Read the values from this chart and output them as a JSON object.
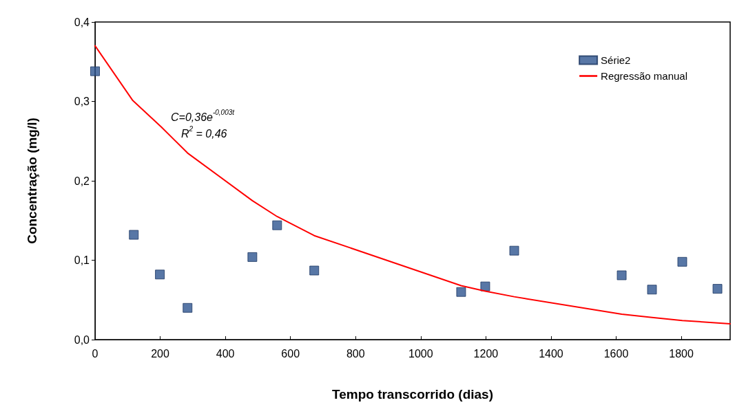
{
  "chart_data": {
    "type": "scatter",
    "xlabel": "Tempo transcorrido (dias)",
    "ylabel": "Concentração (mg/l)",
    "annotations": [
      "C=0,36e$^{-0,003t}$",
      "R$^{2}$ = 0,46"
    ],
    "series": [
      {
        "name": "Série2",
        "marker": "square",
        "color": "#2e5590",
        "x": [
          0,
          119,
          199,
          284,
          483,
          559,
          673,
          1124,
          1198,
          1287,
          1617,
          1710,
          1803,
          1911
        ],
        "values": [
          0.338,
          0.132,
          0.082,
          0.04,
          0.104,
          0.144,
          0.087,
          0.06,
          0.067,
          0.112,
          0.081,
          0.063,
          0.098,
          0.064
        ]
      },
      {
        "name": "Regressão manual",
        "type": "line",
        "marker": "none",
        "line_style": "solid",
        "color": "#ff0000",
        "x": [
          0,
          116,
          203,
          284,
          483,
          559,
          673,
          1124,
          1198,
          1287,
          1617,
          1710,
          1803,
          1950
        ],
        "values": [
          0.37,
          0.301,
          0.268,
          0.235,
          0.175,
          0.155,
          0.131,
          0.068,
          0.061,
          0.054,
          0.032,
          0.028,
          0.024,
          0.02
        ]
      }
    ],
    "xlim": [
      0,
      1950
    ],
    "xticks": [
      0,
      200,
      400,
      600,
      800,
      1000,
      1200,
      1400,
      1600,
      1800
    ],
    "ylim": [
      0,
      0.4
    ],
    "yticks": [
      {
        "value": 0,
        "label": "0,0"
      },
      {
        "value": 0.1,
        "label": "0,1"
      },
      {
        "value": 0.2,
        "label": "0,2"
      },
      {
        "value": 0.3,
        "label": "0,3"
      },
      {
        "value": 0.4,
        "label": "0,4"
      }
    ],
    "grid": false,
    "legend": "top right"
  }
}
